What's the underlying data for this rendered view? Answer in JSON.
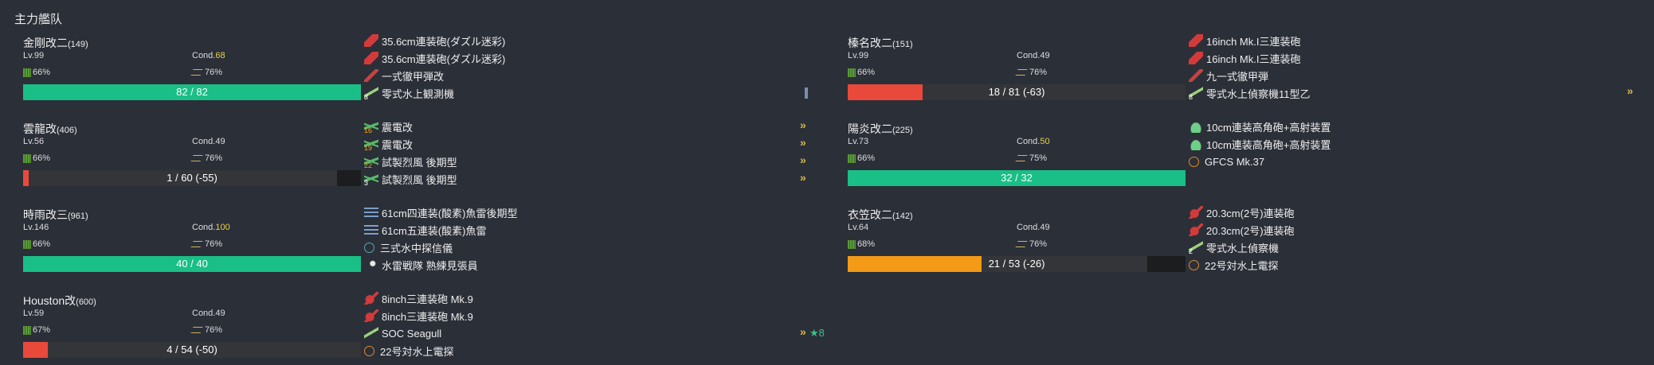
{
  "fleet": {
    "title": "主力艦队"
  },
  "ships": [
    {
      "name": "金剛改二",
      "id": "(149)",
      "level": "Lv.99",
      "cond_label": "Cond.",
      "cond": "68",
      "cond_good": true,
      "fuel": "66%",
      "ammo": "76%",
      "hp": "82 / 82",
      "hp_fraction": 1.0,
      "hp_color": "green",
      "equips": [
        {
          "icon": "gun-red-icon",
          "name": "35.6cm連装砲(ダズル迷彩)",
          "slot": ""
        },
        {
          "icon": "gun-red-icon",
          "name": "35.6cm連装砲(ダズル迷彩)",
          "slot": ""
        },
        {
          "icon": "shell-icon",
          "name": "一式徹甲弾改",
          "slot": ""
        },
        {
          "icon": "seaplane-icon",
          "name": "零式水上観測機",
          "slot": "3"
        }
      ]
    },
    {
      "name": "雲龍改",
      "id": "(406)",
      "level": "Lv.56",
      "cond_label": "Cond.",
      "cond": "49",
      "cond_good": false,
      "fuel": "66%",
      "ammo": "76%",
      "hp": "1 / 60 (-55)",
      "hp_fraction": 0.017,
      "hp_color": "red",
      "equips": [
        {
          "icon": "fighter-icon",
          "name": "震電改",
          "slot": "16"
        },
        {
          "icon": "fighter-icon",
          "name": "震電改",
          "slot": "19"
        },
        {
          "icon": "fighter-icon",
          "name": "試製烈風 後期型",
          "slot": "22"
        },
        {
          "icon": "fighter-icon",
          "name": "試製烈風 後期型",
          "slot": "3"
        }
      ]
    },
    {
      "name": "時雨改三",
      "id": "(961)",
      "level": "Lv.146",
      "cond_label": "Cond.",
      "cond": "100",
      "cond_good": true,
      "fuel": "66%",
      "ammo": "76%",
      "hp": "40 / 40",
      "hp_fraction": 1.0,
      "hp_color": "green",
      "equips": [
        {
          "icon": "torpedo-icon",
          "name": "61cm四連装(酸素)魚雷後期型",
          "slot": ""
        },
        {
          "icon": "torpedo-icon",
          "name": "61cm五連装(酸素)魚雷",
          "slot": ""
        },
        {
          "icon": "sonar-icon",
          "name": "三式水中探信儀",
          "slot": ""
        },
        {
          "icon": "crew-icon",
          "name": "水雷戦隊 熟練見張員",
          "slot": ""
        }
      ]
    },
    {
      "name": "Houston改",
      "id": "(600)",
      "level": "Lv.59",
      "cond_label": "Cond.",
      "cond": "49",
      "cond_good": false,
      "fuel": "67%",
      "ammo": "76%",
      "hp": "4 / 54 (-50)",
      "hp_fraction": 0.074,
      "hp_color": "red",
      "equips": [
        {
          "icon": "gun-red-icon",
          "name": "8inch三連装砲 Mk.9",
          "slot": ""
        },
        {
          "icon": "gun-red-icon",
          "name": "8inch三連装砲 Mk.9",
          "slot": ""
        },
        {
          "icon": "seaplane-icon",
          "name": "SOC Seagull",
          "slot": ""
        },
        {
          "icon": "radar-icon",
          "name": "22号対水上電探",
          "slot": ""
        }
      ],
      "extra": "★8"
    },
    {
      "name": "榛名改二",
      "id": "(151)",
      "level": "Lv.99",
      "cond_label": "Cond.",
      "cond": "49",
      "cond_good": false,
      "fuel": "66%",
      "ammo": "76%",
      "hp": "18 / 81 (-63)",
      "hp_fraction": 0.222,
      "hp_color": "red",
      "equips": [
        {
          "icon": "gun-red-icon",
          "name": "16inch Mk.I三連装砲",
          "slot": ""
        },
        {
          "icon": "gun-red-icon",
          "name": "16inch Mk.I三連装砲",
          "slot": ""
        },
        {
          "icon": "shell-icon",
          "name": "九一式徹甲弾",
          "slot": ""
        },
        {
          "icon": "seaplane-icon",
          "name": "零式水上偵察機11型乙",
          "slot": "3"
        }
      ]
    },
    {
      "name": "陽炎改二",
      "id": "(225)",
      "level": "Lv.73",
      "cond_label": "Cond.",
      "cond": "50",
      "cond_good": true,
      "fuel": "66%",
      "ammo": "75%",
      "hp": "32 / 32",
      "hp_fraction": 1.0,
      "hp_color": "green",
      "equips": [
        {
          "icon": "aa-gun-icon",
          "name": "10cm連装高角砲+高射装置",
          "slot": ""
        },
        {
          "icon": "aa-gun-icon",
          "name": "10cm連装高角砲+高射装置",
          "slot": ""
        },
        {
          "icon": "radar-icon",
          "name": "GFCS Mk.37",
          "slot": ""
        }
      ]
    },
    {
      "name": "衣笠改二",
      "id": "(142)",
      "level": "Lv.64",
      "cond_label": "Cond.",
      "cond": "49",
      "cond_good": false,
      "fuel": "68%",
      "ammo": "76%",
      "hp": "21 / 53 (-26)",
      "hp_fraction": 0.396,
      "hp_color": "orange",
      "equips": [
        {
          "icon": "gun-red-icon",
          "name": "20.3cm(2号)連装砲",
          "slot": ""
        },
        {
          "icon": "gun-red-icon",
          "name": "20.3cm(2号)連装砲",
          "slot": ""
        },
        {
          "icon": "seaplane-icon",
          "name": "零式水上偵察機",
          "slot": "2"
        },
        {
          "icon": "radar-icon",
          "name": "22号対水上電探",
          "slot": ""
        }
      ]
    }
  ],
  "colors": {
    "green": "#19bf86",
    "red": "#e8493b",
    "orange": "#f39a16",
    "cond_good": "#e8d34a",
    "background": "#2b2f38"
  }
}
